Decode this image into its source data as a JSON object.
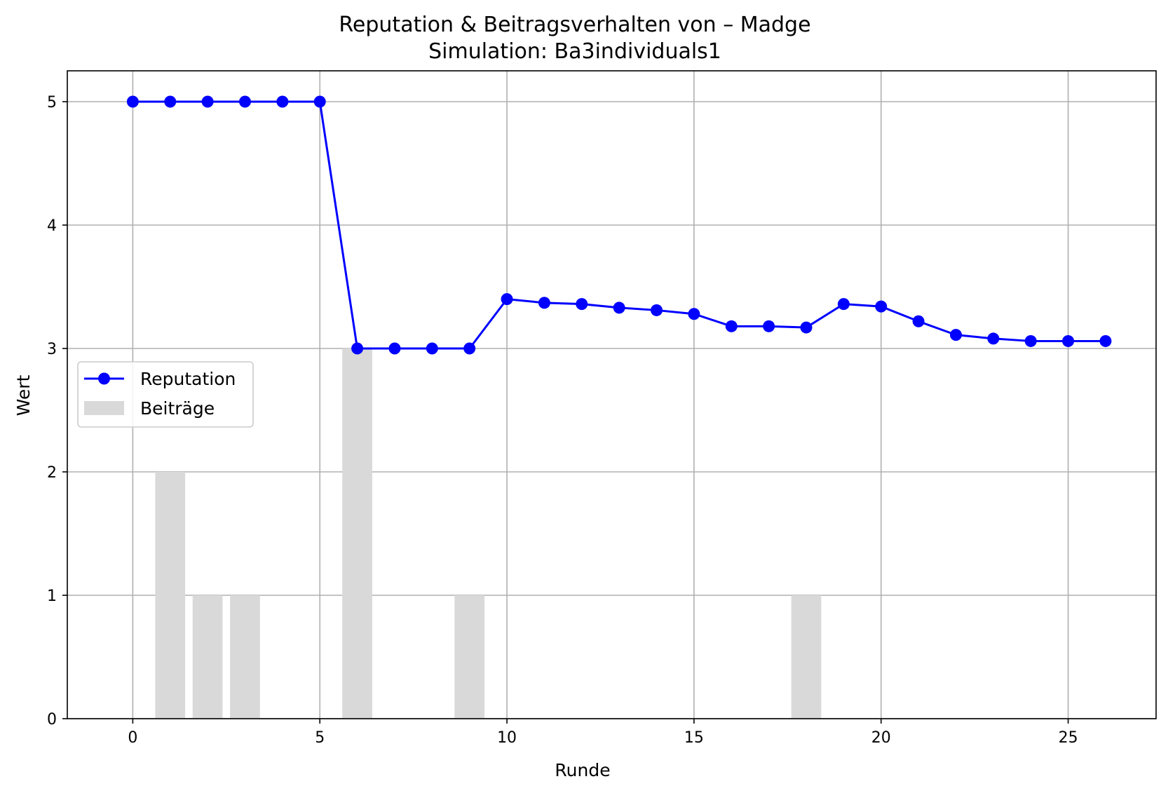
{
  "chart_data": {
    "type": "bar+line",
    "title": "Reputation & Beitragsverhalten von – Madge",
    "subtitle": "Simulation: Ba3individuals1",
    "xlabel": "Runde",
    "ylabel": "Wert",
    "xlim": [
      -1.75,
      27.35
    ],
    "ylim": [
      0,
      5.25
    ],
    "x_ticks": [
      0,
      5,
      10,
      15,
      20,
      25
    ],
    "y_ticks": [
      0,
      1,
      2,
      3,
      4,
      5
    ],
    "grid": true,
    "legend_position": "center-left",
    "x": [
      0,
      1,
      2,
      3,
      4,
      5,
      6,
      7,
      8,
      9,
      10,
      11,
      12,
      13,
      14,
      15,
      16,
      17,
      18,
      19,
      20,
      21,
      22,
      23,
      24,
      25,
      26
    ],
    "series": [
      {
        "name": "Reputation",
        "kind": "line",
        "marker": "circle",
        "color": "#0000ff",
        "values": [
          5,
          5,
          5,
          5,
          5,
          5,
          3,
          3,
          3,
          3,
          3.4,
          3.37,
          3.36,
          3.33,
          3.31,
          3.28,
          3.18,
          3.18,
          3.17,
          3.36,
          3.34,
          3.22,
          3.11,
          3.08,
          3.06,
          3.06,
          3.06
        ]
      },
      {
        "name": "Beiträge",
        "kind": "bar",
        "color": "#d9d9d9",
        "values": [
          0,
          2,
          1,
          1,
          0,
          0,
          3,
          0,
          0,
          1,
          0,
          0,
          0,
          0,
          0,
          0,
          0,
          0,
          1,
          0,
          0,
          0,
          0,
          0,
          0,
          0,
          0
        ]
      }
    ]
  }
}
